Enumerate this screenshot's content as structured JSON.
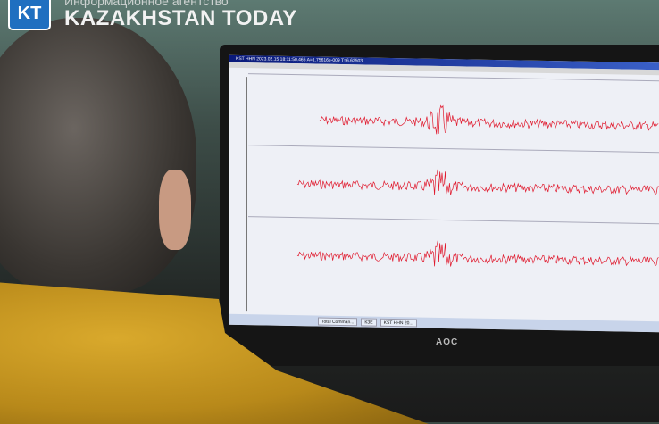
{
  "logo": {
    "mark": "KT",
    "subtitle": "Информационное агентство",
    "name": "KAZAKHSTAN TODAY"
  },
  "screen": {
    "title": "KST HHN 2023.02.15 18:11:50.466 A=1.75616e-009 T=6.62503",
    "taskbar": [
      "Total Comman...",
      "КЗЕ",
      "KST HHN 20..."
    ],
    "trace_color": "#e0182c"
  },
  "monitor": {
    "brand": "AOC"
  }
}
